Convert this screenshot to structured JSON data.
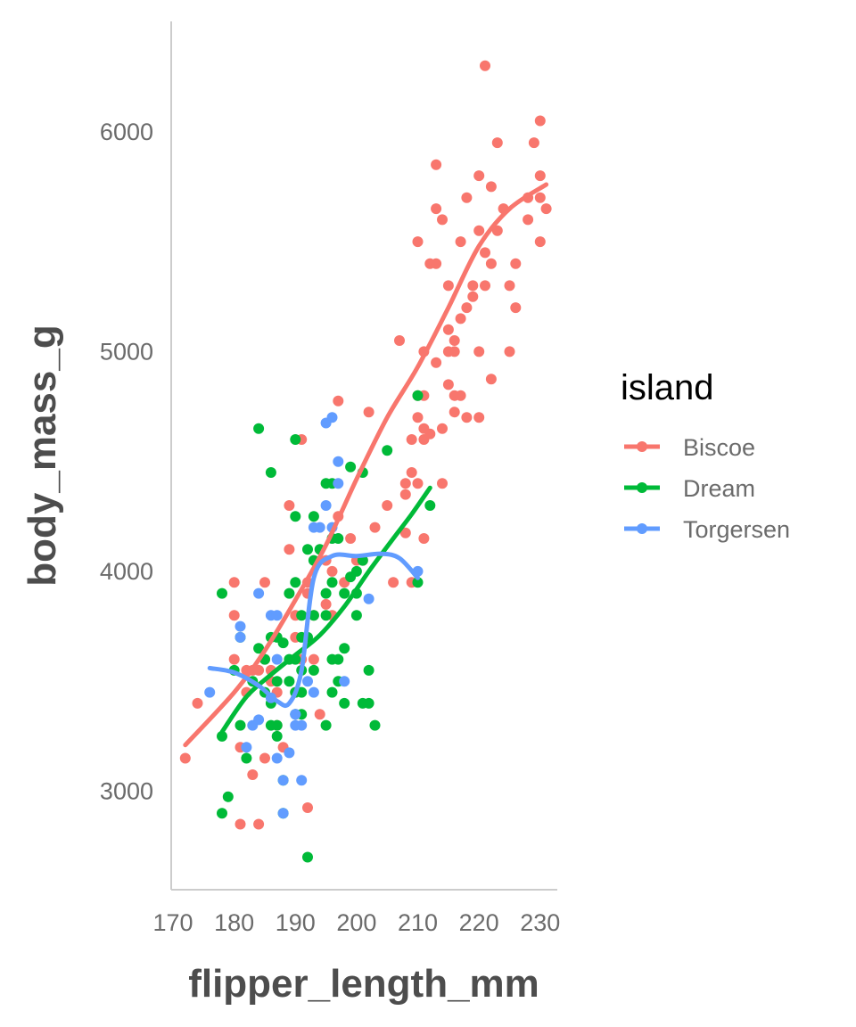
{
  "chart_data": {
    "type": "scatter",
    "xlabel": "flipper_length_mm",
    "ylabel": "body_mass_g",
    "xlim": [
      169.7,
      232.8
    ],
    "ylim": [
      2552,
      6502
    ],
    "x_ticks": [
      170,
      180,
      190,
      200,
      210,
      220,
      230
    ],
    "y_ticks": [
      3000,
      4000,
      5000,
      6000
    ],
    "grid": false,
    "legend": {
      "title": "island",
      "placement": "right"
    },
    "series": [
      {
        "name": "Biscoe",
        "color": "#F8766D",
        "points": [
          [
            172,
            3150
          ],
          [
            174,
            3400
          ],
          [
            180,
            3950
          ],
          [
            180,
            3800
          ],
          [
            180,
            3600
          ],
          [
            181,
            3200
          ],
          [
            181,
            2850
          ],
          [
            182,
            3550
          ],
          [
            182,
            3450
          ],
          [
            183,
            3550
          ],
          [
            183,
            3075
          ],
          [
            184,
            3550
          ],
          [
            184,
            2850
          ],
          [
            185,
            3150
          ],
          [
            185,
            3950
          ],
          [
            185,
            3600
          ],
          [
            186,
            3550
          ],
          [
            186,
            3500
          ],
          [
            187,
            3450
          ],
          [
            187,
            3300
          ],
          [
            188,
            3200
          ],
          [
            189,
            4300
          ],
          [
            189,
            4100
          ],
          [
            190,
            3450
          ],
          [
            190,
            3700
          ],
          [
            190,
            3800
          ],
          [
            191,
            4600
          ],
          [
            191,
            3600
          ],
          [
            192,
            3900
          ],
          [
            192,
            3950
          ],
          [
            192,
            2925
          ],
          [
            193,
            3800
          ],
          [
            193,
            3600
          ],
          [
            194,
            3350
          ],
          [
            195,
            3850
          ],
          [
            195,
            4050
          ],
          [
            196,
            4000
          ],
          [
            196,
            3800
          ],
          [
            197,
            4775
          ],
          [
            197,
            4250
          ],
          [
            198,
            3950
          ],
          [
            199,
            4150
          ],
          [
            200,
            4050
          ],
          [
            201,
            4050
          ],
          [
            202,
            4725
          ],
          [
            203,
            4200
          ],
          [
            205,
            4300
          ],
          [
            206,
            3950
          ],
          [
            207,
            5050
          ],
          [
            208,
            4400
          ],
          [
            208,
            4350
          ],
          [
            208,
            4175
          ],
          [
            209,
            4600
          ],
          [
            209,
            3950
          ],
          [
            210,
            4700
          ],
          [
            210,
            4800
          ],
          [
            210,
            5500
          ],
          [
            210,
            4400
          ],
          [
            211,
            5000
          ],
          [
            211,
            4600
          ],
          [
            211,
            4800
          ],
          [
            211,
            4650
          ],
          [
            212,
            5400
          ],
          [
            212,
            4625
          ],
          [
            213,
            5850
          ],
          [
            213,
            5400
          ],
          [
            213,
            4950
          ],
          [
            214,
            4650
          ],
          [
            214,
            4400
          ],
          [
            215,
            5000
          ],
          [
            215,
            4850
          ],
          [
            215,
            5100
          ],
          [
            215,
            5300
          ],
          [
            216,
            5000
          ],
          [
            216,
            4800
          ],
          [
            216,
            5050
          ],
          [
            217,
            5500
          ],
          [
            217,
            5150
          ],
          [
            217,
            4800
          ],
          [
            218,
            5700
          ],
          [
            218,
            5200
          ],
          [
            219,
            5300
          ],
          [
            220,
            5800
          ],
          [
            220,
            5550
          ],
          [
            220,
            5000
          ],
          [
            221,
            6300
          ],
          [
            221,
            5300
          ],
          [
            222,
            5750
          ],
          [
            222,
            5400
          ],
          [
            223,
            5950
          ],
          [
            224,
            5650
          ],
          [
            225,
            5300
          ],
          [
            225,
            5000
          ],
          [
            226,
            5200
          ],
          [
            228,
            5600
          ],
          [
            229,
            5950
          ],
          [
            230,
            5800
          ],
          [
            230,
            5700
          ],
          [
            230,
            5500
          ],
          [
            231,
            5650
          ],
          [
            216,
            4725
          ],
          [
            218,
            4700
          ],
          [
            219,
            5250
          ],
          [
            221,
            5450
          ],
          [
            222,
            4875
          ],
          [
            223,
            5550
          ],
          [
            220,
            4700
          ],
          [
            214,
            5600
          ],
          [
            213,
            5650
          ],
          [
            211,
            4150
          ],
          [
            209,
            4450
          ],
          [
            226,
            5400
          ],
          [
            228,
            5700
          ],
          [
            230,
            6050
          ]
        ]
      },
      {
        "name": "Dream",
        "color": "#00BA38",
        "points": [
          [
            178,
            3250
          ],
          [
            178,
            3900
          ],
          [
            178,
            2900
          ],
          [
            179,
            2975
          ],
          [
            180,
            3550
          ],
          [
            181,
            3700
          ],
          [
            181,
            3300
          ],
          [
            182,
            3150
          ],
          [
            183,
            3500
          ],
          [
            184,
            3650
          ],
          [
            184,
            4650
          ],
          [
            185,
            3600
          ],
          [
            185,
            3450
          ],
          [
            186,
            3400
          ],
          [
            186,
            4450
          ],
          [
            187,
            3700
          ],
          [
            187,
            3250
          ],
          [
            187,
            3300
          ],
          [
            188,
            3050
          ],
          [
            188,
            2900
          ],
          [
            189,
            3900
          ],
          [
            189,
            3600
          ],
          [
            190,
            3450
          ],
          [
            190,
            3950
          ],
          [
            190,
            4250
          ],
          [
            190,
            4600
          ],
          [
            191,
            3450
          ],
          [
            191,
            3800
          ],
          [
            191,
            3550
          ],
          [
            191,
            3700
          ],
          [
            192,
            4100
          ],
          [
            192,
            3700
          ],
          [
            192,
            2700
          ],
          [
            193,
            3800
          ],
          [
            193,
            4250
          ],
          [
            193,
            4050
          ],
          [
            193,
            3550
          ],
          [
            194,
            4100
          ],
          [
            195,
            4400
          ],
          [
            195,
            3800
          ],
          [
            195,
            3900
          ],
          [
            196,
            4150
          ],
          [
            196,
            3600
          ],
          [
            196,
            3450
          ],
          [
            196,
            4400
          ],
          [
            197,
            4150
          ],
          [
            197,
            3500
          ],
          [
            198,
            3650
          ],
          [
            198,
            3400
          ],
          [
            199,
            3975
          ],
          [
            200,
            4000
          ],
          [
            200,
            3800
          ],
          [
            201,
            4050
          ],
          [
            201,
            3400
          ],
          [
            202,
            3550
          ],
          [
            202,
            3400
          ],
          [
            203,
            3300
          ],
          [
            205,
            4550
          ],
          [
            210,
            4800
          ],
          [
            210,
            3950
          ],
          [
            212,
            4300
          ],
          [
            199,
            4475
          ],
          [
            198,
            3900
          ],
          [
            186,
            3700
          ],
          [
            186,
            3300
          ],
          [
            189,
            3500
          ],
          [
            190,
            3350
          ],
          [
            190,
            3600
          ],
          [
            195,
            3300
          ],
          [
            196,
            3950
          ],
          [
            197,
            3600
          ],
          [
            200,
            3900
          ],
          [
            201,
            4450
          ],
          [
            187,
            3500
          ],
          [
            188,
            3675
          ],
          [
            191,
            3350
          ]
        ]
      },
      {
        "name": "Torgersen",
        "color": "#619CFF",
        "points": [
          [
            176,
            3450
          ],
          [
            181,
            3750
          ],
          [
            181,
            3700
          ],
          [
            182,
            3200
          ],
          [
            183,
            3300
          ],
          [
            184,
            3900
          ],
          [
            186,
            3800
          ],
          [
            187,
            3800
          ],
          [
            187,
            3600
          ],
          [
            187,
            3150
          ],
          [
            188,
            3050
          ],
          [
            190,
            3350
          ],
          [
            190,
            3300
          ],
          [
            191,
            3050
          ],
          [
            193,
            3450
          ],
          [
            194,
            4200
          ],
          [
            195,
            4300
          ],
          [
            195,
            4675
          ],
          [
            196,
            4700
          ],
          [
            196,
            4200
          ],
          [
            197,
            4400
          ],
          [
            198,
            3500
          ],
          [
            202,
            3875
          ],
          [
            210,
            4000
          ],
          [
            193,
            4200
          ],
          [
            190,
            3350
          ],
          [
            191,
            3300
          ],
          [
            192,
            3500
          ],
          [
            184,
            3325
          ],
          [
            186,
            3425
          ],
          [
            188,
            2900
          ],
          [
            189,
            3175
          ],
          [
            197,
            4500
          ]
        ]
      }
    ],
    "smooth": [
      {
        "name": "Biscoe",
        "color": "#F8766D",
        "points": [
          [
            172,
            3210
          ],
          [
            180,
            3450
          ],
          [
            185,
            3640
          ],
          [
            190,
            3870
          ],
          [
            195,
            4120
          ],
          [
            200,
            4420
          ],
          [
            205,
            4700
          ],
          [
            210,
            4930
          ],
          [
            215,
            5200
          ],
          [
            220,
            5480
          ],
          [
            225,
            5650
          ],
          [
            231,
            5760
          ]
        ]
      },
      {
        "name": "Dream",
        "color": "#00BA38",
        "points": [
          [
            178,
            3270
          ],
          [
            182,
            3430
          ],
          [
            186,
            3530
          ],
          [
            190,
            3620
          ],
          [
            194,
            3710
          ],
          [
            198,
            3840
          ],
          [
            202,
            4000
          ],
          [
            206,
            4150
          ],
          [
            209,
            4260
          ],
          [
            212,
            4380
          ]
        ]
      },
      {
        "name": "Torgersen",
        "color": "#619CFF",
        "points": [
          [
            176,
            3560
          ],
          [
            180,
            3540
          ],
          [
            184,
            3480
          ],
          [
            187,
            3410
          ],
          [
            189,
            3400
          ],
          [
            191,
            3550
          ],
          [
            193,
            3970
          ],
          [
            196,
            4070
          ],
          [
            200,
            4070
          ],
          [
            204,
            4080
          ],
          [
            207,
            4060
          ],
          [
            210,
            3970
          ]
        ]
      }
    ]
  }
}
